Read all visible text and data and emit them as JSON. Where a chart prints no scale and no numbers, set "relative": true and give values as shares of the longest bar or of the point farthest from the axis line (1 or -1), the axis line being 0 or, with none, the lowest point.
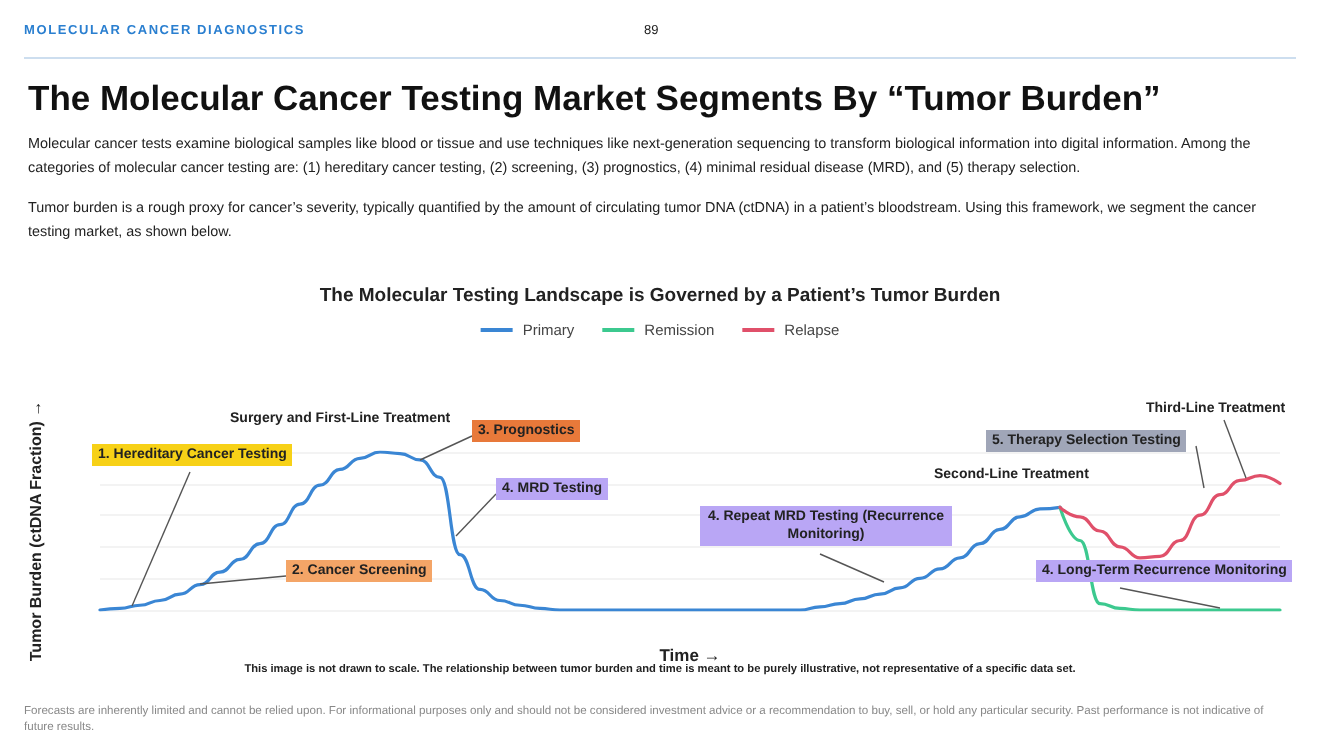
{
  "chart_data": {
    "type": "line",
    "title": "The Molecular Cancer Testing Market Segments By “Tumor Burden”",
    "subtitle": "The Molecular Testing Landscape is Governed by a Patient’s Tumor Burden",
    "xlabel": "Time →",
    "ylabel": "Tumor Burden (ctDNA Fraction) →",
    "annotations": [
      "MOLECULAR CANCER DIAGNOSTICS",
      "89",
      "Molecular cancer tests examine biological samples like blood or tissue and use techniques like next-generation sequencing to transform biological information into digital information. Among the categories of molecular cancer testing are: (1) hereditary cancer testing, (2) screening, (3) prognostics, (4) minimal residual disease (MRD), and (5) therapy selection.",
      "Tumor burden is a rough proxy for cancer’s severity, typically quantified by the amount of circulating tumor DNA (ctDNA) in a patient’s bloodstream. Using this framework, we segment the cancer testing market, as shown below.",
      "1. Hereditary Cancer Testing",
      "Surgery and First-Line Treatment",
      "3. Prognostics",
      "4. MRD Testing",
      "2. Cancer Screening",
      "4. Repeat MRD Testing (Recurrence Monitoring)",
      "Second-Line Treatment",
      "5. Therapy Selection Testing",
      "Third-Line Treatment",
      "4. Long-Term Recurrence Monitoring",
      "This image is not drawn to scale. The relationship between tumor burden and time is meant to be purely illustrative, not representative of a specific data set.",
      "Forecasts are inherently limited and cannot be relied upon. For informational purposes only and should not be considered investment advice or a recommendation to buy, sell, or hold any particular security. Past performance is not indicative of future results."
    ],
    "categories": [
      null,
      null,
      null,
      null,
      null,
      null,
      null,
      null,
      null,
      null,
      null,
      null,
      null,
      null,
      null,
      null,
      null,
      null,
      null,
      null,
      null,
      null,
      null,
      null,
      null,
      null,
      null,
      null,
      null,
      null,
      null,
      null,
      null,
      null,
      null,
      null,
      null,
      null,
      null,
      null,
      null,
      null,
      null,
      null,
      null,
      null,
      null,
      null,
      null,
      null,
      null,
      null,
      null,
      null,
      null,
      null,
      null,
      null,
      null,
      null
    ],
    "relative": true,
    "series": [
      {
        "name": "Primary",
        "color": "#3a86d4",
        "values": [
          0,
          0.01,
          0.03,
          0.06,
          0.1,
          0.16,
          0.24,
          0.32,
          0.42,
          0.54,
          0.67,
          0.79,
          0.89,
          0.96,
          1,
          0.99,
          0.95,
          0.84,
          0.35,
          0.13,
          0.06,
          0.03,
          0.01,
          0,
          0,
          0,
          0,
          0,
          0,
          0,
          0,
          0,
          0,
          0,
          0,
          0,
          0.02,
          0.04,
          0.07,
          0.1,
          0.14,
          0.2,
          0.26,
          0.33,
          0.42,
          0.51,
          0.59,
          0.64,
          0.65,
          null,
          null,
          null,
          null,
          null,
          null,
          null,
          null,
          null,
          null,
          null
        ]
      },
      {
        "name": "Remission",
        "color": "#3cc98f",
        "values": [
          null,
          null,
          null,
          null,
          null,
          null,
          null,
          null,
          null,
          null,
          null,
          null,
          null,
          null,
          null,
          null,
          null,
          null,
          null,
          null,
          null,
          null,
          null,
          null,
          null,
          null,
          null,
          null,
          null,
          null,
          null,
          null,
          null,
          null,
          null,
          null,
          null,
          null,
          null,
          null,
          null,
          null,
          null,
          null,
          null,
          null,
          null,
          null,
          0.65,
          0.44,
          0.04,
          0.01,
          0,
          0,
          0,
          0,
          0,
          0,
          0,
          0
        ]
      },
      {
        "name": "Relapse",
        "color": "#e0506a",
        "values": [
          null,
          null,
          null,
          null,
          null,
          null,
          null,
          null,
          null,
          null,
          null,
          null,
          null,
          null,
          null,
          null,
          null,
          null,
          null,
          null,
          null,
          null,
          null,
          null,
          null,
          null,
          null,
          null,
          null,
          null,
          null,
          null,
          null,
          null,
          null,
          null,
          null,
          null,
          null,
          null,
          null,
          null,
          null,
          null,
          null,
          null,
          null,
          null,
          0.65,
          0.59,
          0.5,
          0.4,
          0.33,
          0.34,
          0.44,
          0.6,
          0.73,
          0.82,
          0.85,
          0.8
        ]
      }
    ],
    "legend": "top",
    "grid": "y"
  }
}
